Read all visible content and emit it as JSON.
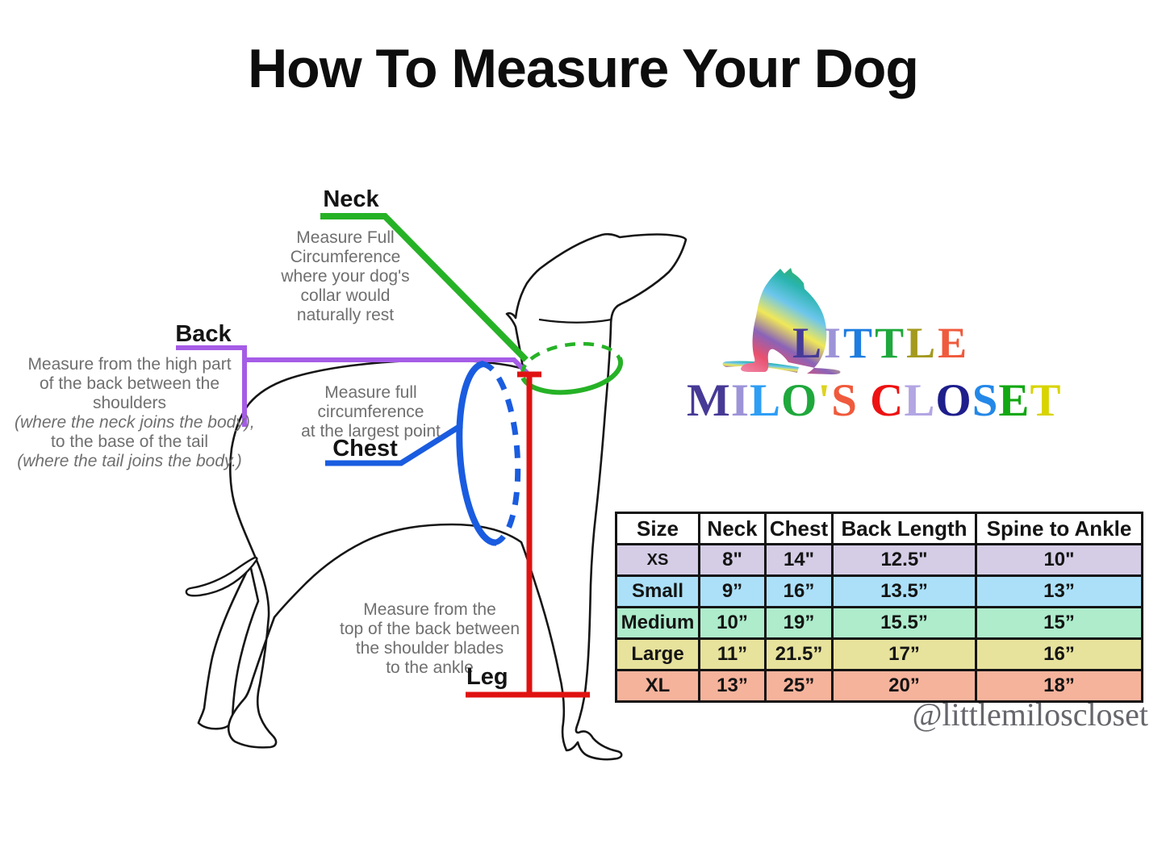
{
  "title": "How To Measure Your Dog",
  "colors": {
    "green": "#26b226",
    "purple": "#a55ce6",
    "blue": "#1a5ce0",
    "red": "#e01212",
    "gray": "#6f6f6f",
    "outline": "#161616"
  },
  "annotations": {
    "neck": {
      "label": "Neck",
      "lines": [
        "Measure Full",
        "Circumference",
        "where your dog's",
        "collar would",
        "naturally rest"
      ]
    },
    "back": {
      "label": "Back",
      "lines": [
        {
          "t": "Measure from the high part"
        },
        {
          "t": "of the back between the"
        },
        {
          "t": "shoulders"
        },
        {
          "t": "(where the neck joins the body),",
          "i": true
        },
        {
          "t": "to the base of the tail"
        },
        {
          "t": "(where the tail joins the body.)",
          "i": true
        }
      ]
    },
    "chest": {
      "label": "Chest",
      "lines": [
        "Measure full",
        "circumference",
        "at the largest point"
      ]
    },
    "leg": {
      "label": "Leg",
      "lines": [
        "Measure from the",
        "top of the back between",
        "the shoulder blades",
        "to the ankle"
      ]
    }
  },
  "logo": {
    "line1": [
      {
        "ch": "L",
        "color": "#453a96"
      },
      {
        "ch": "I",
        "color": "#9d94d8"
      },
      {
        "ch": "T",
        "color": "#1e7de0"
      },
      {
        "ch": "T",
        "color": "#1fa83c"
      },
      {
        "ch": "L",
        "color": "#a39a1f"
      },
      {
        "ch": "E",
        "color": "#f05a3c"
      }
    ],
    "line2": [
      {
        "ch": "M",
        "color": "#463a96"
      },
      {
        "ch": "I",
        "color": "#9d94d8"
      },
      {
        "ch": "L",
        "color": "#2e9ef5"
      },
      {
        "ch": "O",
        "color": "#1fa83c"
      },
      {
        "ch": "'",
        "color": "#ddd31e"
      },
      {
        "ch": "S",
        "color": "#f05a3c"
      },
      {
        "ch": " ",
        "color": "#000000"
      },
      {
        "ch": "C",
        "color": "#ee1111"
      },
      {
        "ch": "L",
        "color": "#b3a6e3"
      },
      {
        "ch": "O",
        "color": "#1e1e8c"
      },
      {
        "ch": "S",
        "color": "#2488e8"
      },
      {
        "ch": "E",
        "color": "#12a812"
      },
      {
        "ch": "T",
        "color": "#d8d400"
      }
    ],
    "gradient_colors": [
      "#2fae4e",
      "#29b4ae",
      "#6cc6ec",
      "#f0e858",
      "#8a63b8",
      "#e8506e",
      "#f080a0"
    ],
    "handle": "@littlemiloscloset"
  },
  "table": {
    "headers": [
      "Size",
      "Neck",
      "Chest",
      "Back Length",
      "Spine to Ankle"
    ],
    "rows": [
      {
        "size": "XS",
        "color": "#d5cde6",
        "values": [
          "8\"",
          "14\"",
          "12.5\"",
          "10\""
        ]
      },
      {
        "size": "Small",
        "color": "#abe0f8",
        "values": [
          "9”",
          "16”",
          "13.5”",
          "13”"
        ]
      },
      {
        "size": "Medium",
        "color": "#aeeccc",
        "values": [
          "10”",
          "19”",
          "15.5”",
          "15”"
        ]
      },
      {
        "size": "Large",
        "color": "#e7e29c",
        "values": [
          "11”",
          "21.5”",
          "17”",
          "16”"
        ]
      },
      {
        "size": "XL",
        "color": "#f6b39c",
        "values": [
          "13”",
          "25”",
          "20”",
          "18”"
        ]
      }
    ]
  }
}
